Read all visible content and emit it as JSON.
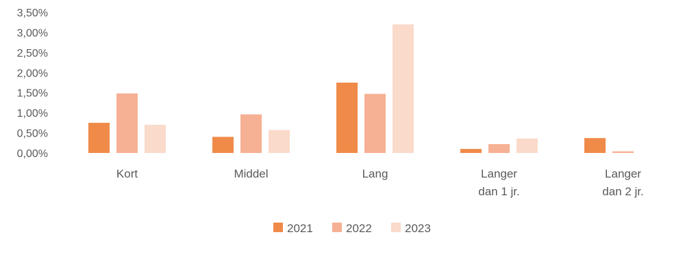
{
  "chart_data": {
    "type": "bar",
    "categories": [
      [
        "Kort"
      ],
      [
        "Middel"
      ],
      [
        "Lang"
      ],
      [
        "Langer",
        "dan 1 jr."
      ],
      [
        "Langer",
        "dan 2 jr."
      ]
    ],
    "series": [
      {
        "name": "2021",
        "color": "#F08A48",
        "values": [
          0.75,
          0.4,
          1.75,
          0.1,
          0.37
        ]
      },
      {
        "name": "2022",
        "color": "#F6B093",
        "values": [
          1.48,
          0.96,
          1.47,
          0.22,
          0.04
        ]
      },
      {
        "name": "2023",
        "color": "#FADACA",
        "values": [
          0.7,
          0.57,
          3.2,
          0.36,
          0.0
        ]
      }
    ],
    "y_ticks": [
      "0,00%",
      "0,50%",
      "1,00%",
      "1,50%",
      "2,00%",
      "2,50%",
      "3,00%",
      "3,50%"
    ],
    "ylim": [
      0,
      3.5
    ],
    "unit": "%",
    "grid": false,
    "legend_position": "bottom"
  }
}
